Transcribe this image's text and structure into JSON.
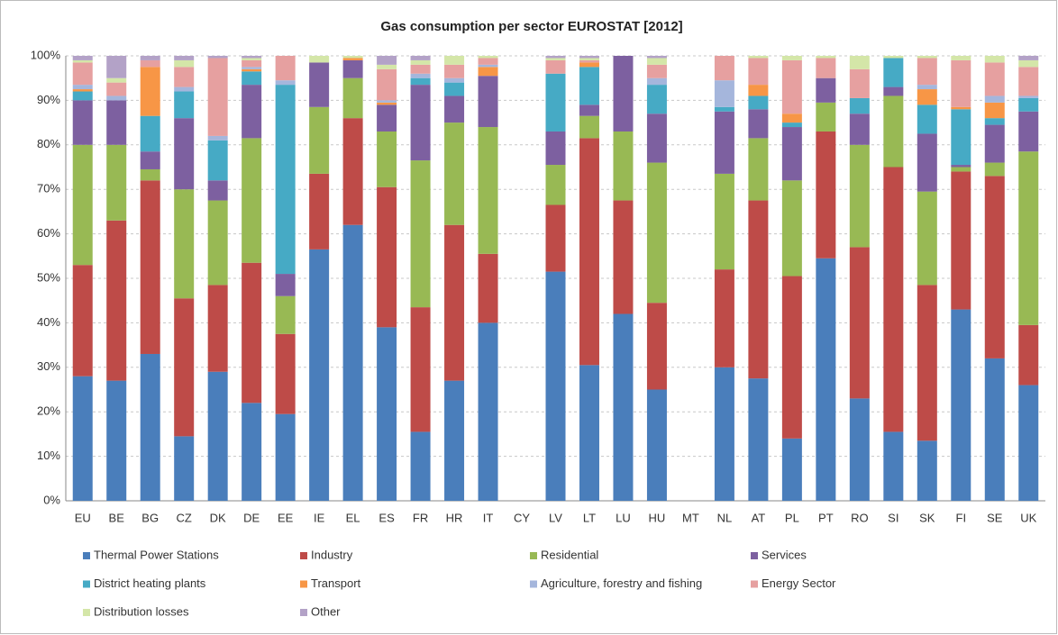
{
  "chart_data": {
    "type": "stacked_bar",
    "title": "Gas consumption per sector EUROSTAT [2012]",
    "categories": [
      "EU",
      "BE",
      "BG",
      "CZ",
      "DK",
      "DE",
      "EE",
      "IE",
      "EL",
      "ES",
      "FR",
      "HR",
      "IT",
      "CY",
      "LV",
      "LT",
      "LU",
      "HU",
      "MT",
      "NL",
      "AT",
      "PL",
      "PT",
      "RO",
      "SI",
      "SK",
      "FI",
      "SE",
      "UK"
    ],
    "ylim": [
      0,
      100
    ],
    "yticks": [
      {
        "value": 0,
        "label": "0%"
      },
      {
        "value": 10,
        "label": "10%"
      },
      {
        "value": 20,
        "label": "20%"
      },
      {
        "value": 30,
        "label": "30%"
      },
      {
        "value": 40,
        "label": "40%"
      },
      {
        "value": 50,
        "label": "50%"
      },
      {
        "value": 60,
        "label": "60%"
      },
      {
        "value": 70,
        "label": "70%"
      },
      {
        "value": 80,
        "label": "80%"
      },
      {
        "value": 90,
        "label": "90%"
      },
      {
        "value": 100,
        "label": "100%"
      }
    ],
    "grid": true,
    "series": [
      {
        "name": "Thermal Power Stations",
        "color": "#4a7ebb",
        "values": [
          28,
          27,
          33,
          14.5,
          29,
          22,
          19.5,
          56.5,
          62,
          39,
          15.5,
          27,
          40,
          0,
          51.5,
          30.5,
          42,
          25,
          0,
          30,
          27.5,
          14,
          54.5,
          23,
          15.5,
          13.5,
          43,
          32,
          26
        ]
      },
      {
        "name": "Industry",
        "color": "#be4b48",
        "values": [
          25,
          36,
          39,
          31,
          19.5,
          31.5,
          18,
          17,
          24,
          31.5,
          28,
          35,
          15.5,
          0,
          15,
          51,
          25.5,
          19.5,
          0,
          22,
          40,
          36.5,
          28.5,
          34,
          59.5,
          35,
          31,
          41,
          13.5
        ]
      },
      {
        "name": "Residential",
        "color": "#98b954",
        "values": [
          27,
          17,
          2.5,
          24.5,
          19,
          28,
          8.5,
          15,
          9,
          12.5,
          33,
          23,
          28.5,
          0,
          9,
          5,
          15.5,
          31.5,
          0,
          21.5,
          14,
          21.5,
          6.5,
          23,
          16,
          21,
          1,
          3,
          39
        ]
      },
      {
        "name": "Services",
        "color": "#7d60a0",
        "values": [
          10,
          10,
          4,
          16,
          4.5,
          12,
          5,
          10,
          4,
          6,
          17,
          6,
          11.5,
          0,
          7.5,
          2.5,
          17,
          11,
          0,
          14,
          6.5,
          12,
          5.5,
          7,
          2,
          13,
          0.5,
          8.5,
          9
        ]
      },
      {
        "name": "District heating plants",
        "color": "#46aac5",
        "values": [
          2,
          0,
          8,
          6,
          9,
          3,
          42.5,
          0,
          0,
          0,
          1.5,
          3,
          0,
          0,
          13,
          8.5,
          0,
          6.5,
          0,
          1,
          3,
          1,
          0,
          3.5,
          6.5,
          6.5,
          12.5,
          1.5,
          3
        ]
      },
      {
        "name": "Transport",
        "color": "#f79646",
        "values": [
          0.5,
          0,
          11,
          0,
          0,
          0.5,
          0,
          0,
          0.5,
          0.5,
          0,
          0,
          2,
          0,
          0,
          1,
          0,
          0,
          0,
          0,
          2.5,
          2,
          0,
          0,
          0,
          3.5,
          0.5,
          3.5,
          0
        ]
      },
      {
        "name": "Agriculture, forestry and fishing",
        "color": "#a5b6dc",
        "values": [
          1,
          1,
          0,
          1,
          1,
          0.5,
          1,
          0,
          0,
          0.5,
          1,
          1,
          0.5,
          0,
          0,
          0,
          0,
          1.5,
          0,
          6,
          0,
          0,
          0,
          0,
          0,
          1,
          0,
          1.5,
          0.5
        ]
      },
      {
        "name": "Energy Sector",
        "color": "#e6a0a0",
        "values": [
          5,
          3,
          1.5,
          4.5,
          17.5,
          1.5,
          5.5,
          0,
          0,
          7,
          2,
          3,
          1.5,
          0,
          3,
          0.5,
          0,
          3,
          0,
          5.5,
          6,
          12,
          4.5,
          6.5,
          0,
          6,
          10.5,
          7.5,
          6.5
        ]
      },
      {
        "name": "Distribution losses",
        "color": "#d4e6a8",
        "values": [
          0.5,
          1,
          0,
          1.5,
          0,
          0.5,
          0,
          1.5,
          0.5,
          1,
          1,
          2,
          0.5,
          0,
          0.5,
          0.5,
          0,
          1.5,
          0,
          0,
          0.5,
          1,
          0.5,
          3,
          0.5,
          0.5,
          1,
          1.5,
          1.5
        ]
      },
      {
        "name": "Other",
        "color": "#b3a2c7",
        "values": [
          1,
          5,
          1,
          1,
          0.5,
          0.5,
          0,
          0,
          0,
          2,
          1,
          0,
          0,
          0,
          0.5,
          0.5,
          0,
          0.5,
          0,
          0,
          0,
          0,
          0,
          0,
          0,
          0,
          0,
          0,
          1
        ]
      }
    ]
  }
}
